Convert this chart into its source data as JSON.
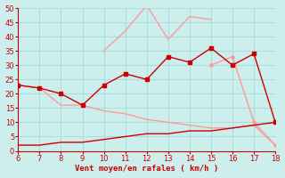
{
  "x": [
    6,
    7,
    8,
    9,
    10,
    11,
    12,
    13,
    14,
    15,
    16,
    17,
    18
  ],
  "dark_main": [
    23,
    22,
    20,
    16,
    23,
    27,
    25,
    33,
    31,
    36,
    30,
    34,
    10
  ],
  "dark_low": [
    2,
    2,
    3,
    3,
    4,
    5,
    6,
    6,
    7,
    7,
    8,
    9,
    10
  ],
  "light_diag": [
    23,
    22,
    16,
    16,
    14,
    13,
    11,
    10,
    9,
    8,
    8,
    9,
    2
  ],
  "light_upper": [
    null,
    null,
    null,
    null,
    35,
    42,
    51,
    39,
    47,
    46,
    null,
    null,
    null
  ],
  "light_mid": [
    null,
    null,
    null,
    null,
    23,
    null,
    null,
    null,
    null,
    30,
    33,
    10,
    2
  ],
  "light_dot1": [
    null,
    21,
    null,
    null,
    null,
    null,
    null,
    null,
    null,
    null,
    null,
    null,
    null
  ],
  "xlim": [
    6,
    18
  ],
  "ylim": [
    0,
    50
  ],
  "yticks": [
    0,
    5,
    10,
    15,
    20,
    25,
    30,
    35,
    40,
    45,
    50
  ],
  "xticks": [
    6,
    7,
    8,
    9,
    10,
    11,
    12,
    13,
    14,
    15,
    16,
    17,
    18
  ],
  "xlabel": "Vent moyen/en rafales ( km/h )",
  "bg_color": "#cceeed",
  "grid_color": "#aadddd",
  "dark_red": "#cc0000",
  "light_red": "#ff9999",
  "lw": 1.0,
  "ms": 2.5
}
